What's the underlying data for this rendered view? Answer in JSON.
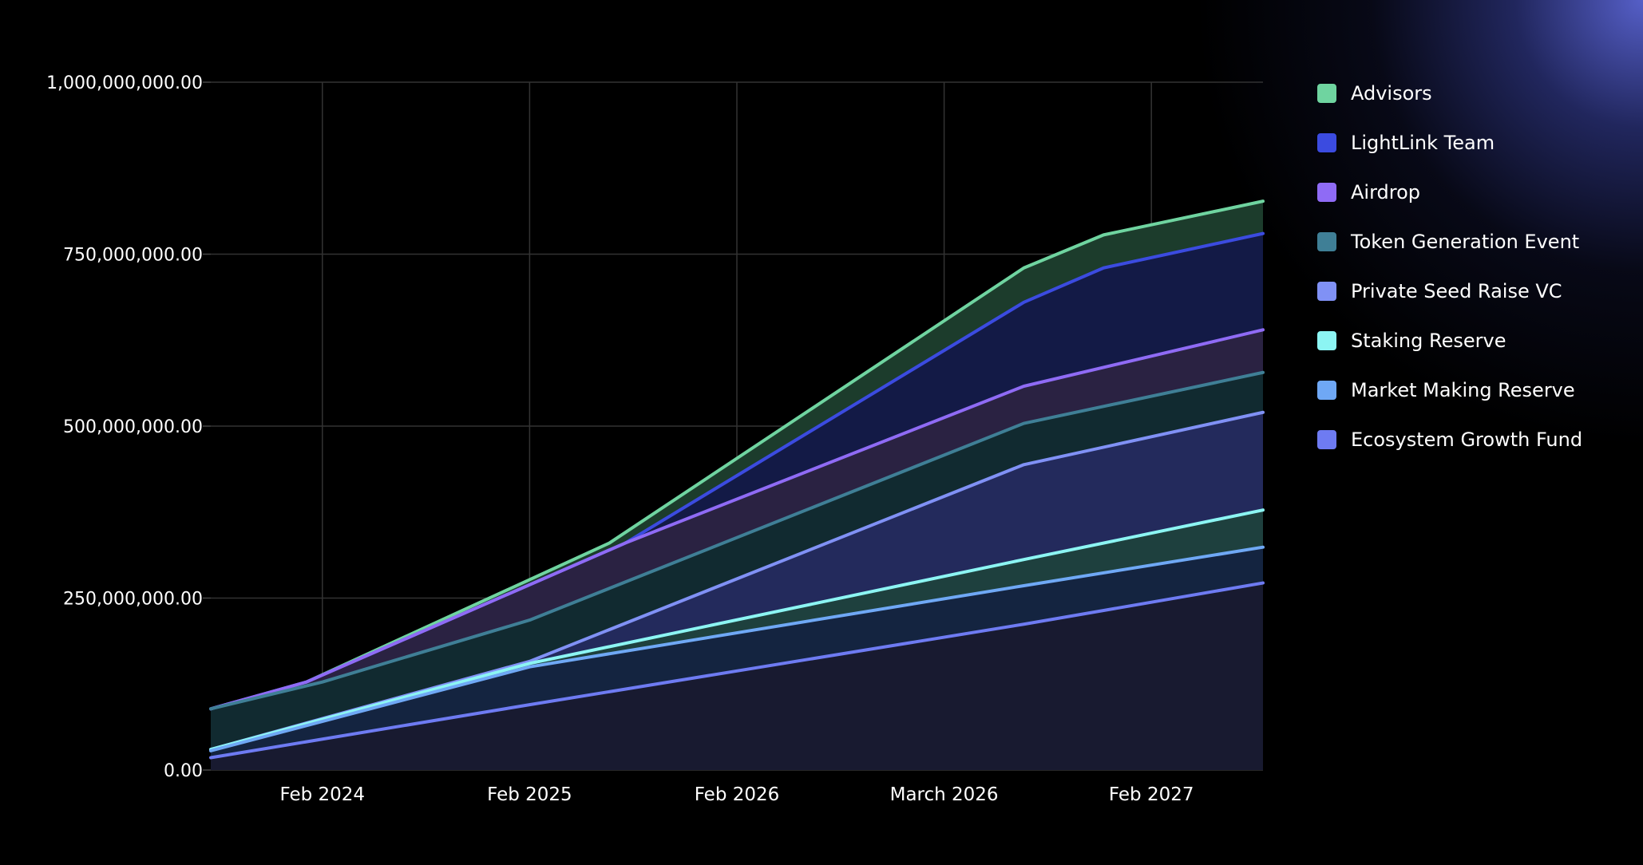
{
  "chart_data": {
    "type": "area",
    "stacked": true,
    "title": "",
    "xlabel": "",
    "ylabel": "",
    "ylim": [
      0,
      1000000000
    ],
    "y_ticks": [
      {
        "value": 0,
        "label": "0.00"
      },
      {
        "value": 250000000,
        "label": "250,000,000.00"
      },
      {
        "value": 500000000,
        "label": "500,000,000.00"
      },
      {
        "value": 750000000,
        "label": "750,000,000.00"
      },
      {
        "value": 1000000000,
        "label": "1,000,000,000.00"
      }
    ],
    "x_range": [
      0,
      66
    ],
    "x_ticks": [
      {
        "x": 7,
        "label": "Feb 2024"
      },
      {
        "x": 20,
        "label": "Feb 2025"
      },
      {
        "x": 33,
        "label": "Feb 2026"
      },
      {
        "x": 46,
        "label": "March 2026"
      },
      {
        "x": 59,
        "label": "Feb 2027"
      }
    ],
    "grid": true,
    "legend_position": "right",
    "series": [
      {
        "name": "Ecosystem Growth Fund",
        "color": "#6E7BF2",
        "fill": "#181a30",
        "points": [
          [
            0,
            18000000
          ],
          [
            20,
            95000000
          ],
          [
            51,
            212000000
          ],
          [
            66,
            272000000
          ]
        ]
      },
      {
        "name": "Market Making Reserve",
        "color": "#6FA8F5",
        "fill": "#142440",
        "points": [
          [
            0,
            28000000
          ],
          [
            20,
            150000000
          ],
          [
            51,
            268000000
          ],
          [
            66,
            324000000
          ]
        ]
      },
      {
        "name": "Staking Reserve",
        "color": "#8CF5F3",
        "fill": "#1e403e",
        "points": [
          [
            0,
            30000000
          ],
          [
            20,
            155000000
          ],
          [
            51,
            306000000
          ],
          [
            66,
            378000000
          ]
        ]
      },
      {
        "name": "Private Seed Raise VC",
        "color": "#8091F5",
        "fill": "#232a5c",
        "points": [
          [
            0,
            30000000
          ],
          [
            20,
            158000000
          ],
          [
            51,
            444000000
          ],
          [
            66,
            520000000
          ]
        ]
      },
      {
        "name": "Token Generation Event",
        "color": "#3F7F96",
        "fill": "#112a30",
        "points": [
          [
            0,
            89000000
          ],
          [
            7,
            128000000
          ],
          [
            20,
            218000000
          ],
          [
            51,
            504000000
          ],
          [
            66,
            578000000
          ]
        ]
      },
      {
        "name": "Airdrop",
        "color": "#8F6BF5",
        "fill": "#2a2242",
        "points": [
          [
            0,
            89000000
          ],
          [
            6,
            128000000
          ],
          [
            26,
            330000000
          ],
          [
            51,
            558000000
          ],
          [
            66,
            640000000
          ]
        ]
      },
      {
        "name": "LightLink Team",
        "color": "#3B4BE0",
        "fill": "#131a46",
        "points": [
          [
            0,
            89000000
          ],
          [
            6,
            128000000
          ],
          [
            26,
            330000000
          ],
          [
            51,
            680000000
          ],
          [
            56,
            730000000
          ],
          [
            66,
            780000000
          ]
        ]
      },
      {
        "name": "Advisors",
        "color": "#6FD4A0",
        "fill": "#1c3c2c",
        "points": [
          [
            0,
            89000000
          ],
          [
            6,
            128000000
          ],
          [
            25,
            330000000
          ],
          [
            51,
            730000000
          ],
          [
            56,
            778000000
          ],
          [
            66,
            827000000
          ]
        ]
      }
    ]
  },
  "legend": [
    {
      "label": "Advisors",
      "color": "#6FD4A0"
    },
    {
      "label": "LightLink Team",
      "color": "#3B4BE0"
    },
    {
      "label": "Airdrop",
      "color": "#8F6BF5"
    },
    {
      "label": "Token Generation Event",
      "color": "#3F7F96"
    },
    {
      "label": "Private Seed Raise VC",
      "color": "#8091F5"
    },
    {
      "label": "Staking Reserve",
      "color": "#8CF5F3"
    },
    {
      "label": "Market Making Reserve",
      "color": "#6FA8F5"
    },
    {
      "label": "Ecosystem Growth Fund",
      "color": "#6E7BF2"
    }
  ]
}
